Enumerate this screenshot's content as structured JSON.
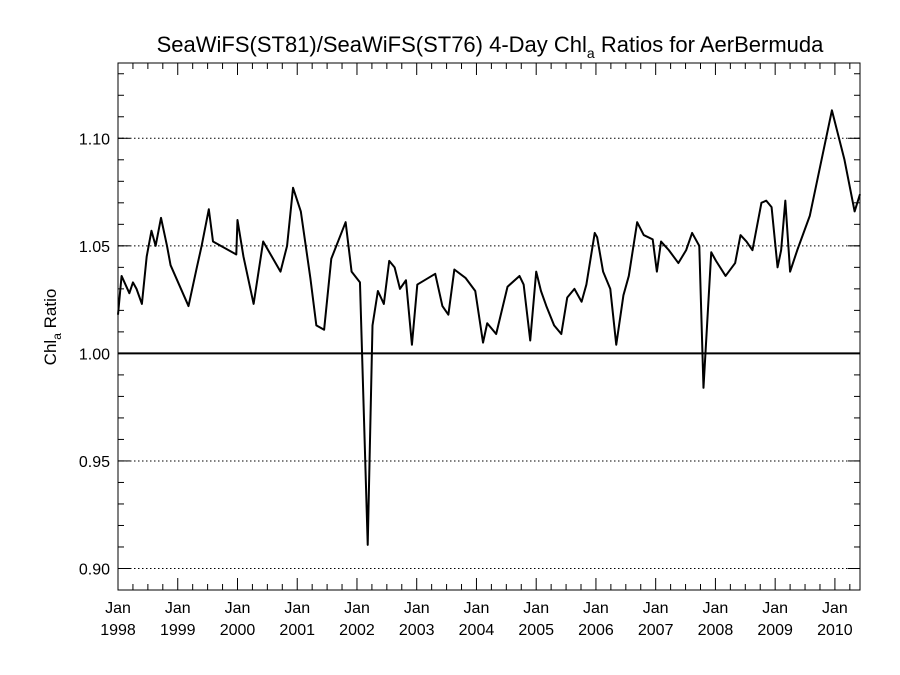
{
  "chart_data": {
    "type": "line",
    "title": {
      "prefix": "SeaWiFS(ST81)/SeaWiFS(ST76) 4-Day Chl",
      "subscript": "a",
      "suffix": " Ratios for AerBermuda"
    },
    "xlabel": "",
    "ylabel": {
      "prefix": "Chl",
      "subscript": "a",
      "suffix": " Ratio"
    },
    "x_unit": "year",
    "xlim": [
      1998.0,
      2010.42
    ],
    "ylim": [
      0.89,
      1.135
    ],
    "x_ticks": [
      {
        "value": 1998,
        "line1": "Jan",
        "line2": "1998"
      },
      {
        "value": 1999,
        "line1": "Jan",
        "line2": "1999"
      },
      {
        "value": 2000,
        "line1": "Jan",
        "line2": "2000"
      },
      {
        "value": 2001,
        "line1": "Jan",
        "line2": "2001"
      },
      {
        "value": 2002,
        "line1": "Jan",
        "line2": "2002"
      },
      {
        "value": 2003,
        "line1": "Jan",
        "line2": "2003"
      },
      {
        "value": 2004,
        "line1": "Jan",
        "line2": "2004"
      },
      {
        "value": 2005,
        "line1": "Jan",
        "line2": "2005"
      },
      {
        "value": 2006,
        "line1": "Jan",
        "line2": "2006"
      },
      {
        "value": 2007,
        "line1": "Jan",
        "line2": "2007"
      },
      {
        "value": 2008,
        "line1": "Jan",
        "line2": "2008"
      },
      {
        "value": 2009,
        "line1": "Jan",
        "line2": "2009"
      },
      {
        "value": 2010,
        "line1": "Jan",
        "line2": "2010"
      }
    ],
    "y_ticks": [
      {
        "value": 0.9,
        "label": "0.90"
      },
      {
        "value": 0.95,
        "label": "0.95"
      },
      {
        "value": 1.0,
        "label": "1.00"
      },
      {
        "value": 1.05,
        "label": "1.05"
      },
      {
        "value": 1.1,
        "label": "1.10"
      }
    ],
    "gridlines_dotted_y": [
      0.9,
      0.95,
      1.05,
      1.1
    ],
    "reference_line_y": 1.0,
    "grid": true,
    "line_color": "#000000",
    "series": [
      {
        "x": [
          1998.0,
          1998.06,
          1998.19,
          1998.25,
          1998.31,
          1998.4,
          1998.48,
          1998.56,
          1998.63,
          1998.72,
          1998.82,
          1998.88,
          1999.18,
          1999.32,
          1999.4,
          1999.52,
          1999.59,
          1999.98,
          2000.0,
          2000.1,
          2000.27,
          2000.43,
          2000.72,
          2000.83,
          2000.93,
          2001.06,
          2001.22,
          2001.32,
          2001.45,
          2001.57,
          2001.81,
          2001.91,
          2002.05,
          2002.18,
          2002.26,
          2002.35,
          2002.45,
          2002.54,
          2002.63,
          2002.72,
          2002.82,
          2002.92,
          2003.01,
          2003.31,
          2003.43,
          2003.53,
          2003.63,
          2003.82,
          2003.98,
          2004.11,
          2004.18,
          2004.33,
          2004.52,
          2004.72,
          2004.79,
          2004.9,
          2005.0,
          2005.08,
          2005.17,
          2005.3,
          2005.42,
          2005.52,
          2005.64,
          2005.76,
          2005.84,
          2005.98,
          2006.02,
          2006.12,
          2006.24,
          2006.34,
          2006.46,
          2006.55,
          2006.69,
          2006.8,
          2006.95,
          2007.02,
          2007.09,
          2007.22,
          2007.38,
          2007.51,
          2007.61,
          2007.73,
          2007.8,
          2007.93,
          2008.01,
          2008.17,
          2008.33,
          2008.42,
          2008.52,
          2008.62,
          2008.77,
          2008.85,
          2008.94,
          2009.04,
          2009.1,
          2009.17,
          2009.25,
          2009.37,
          2009.58,
          2009.95,
          2010.16,
          2010.33,
          2010.42
        ],
        "values": [
          1.018,
          1.036,
          1.028,
          1.033,
          1.03,
          1.023,
          1.045,
          1.057,
          1.05,
          1.063,
          1.05,
          1.041,
          1.022,
          1.04,
          1.05,
          1.067,
          1.052,
          1.046,
          1.062,
          1.045,
          1.023,
          1.052,
          1.038,
          1.05,
          1.077,
          1.066,
          1.035,
          1.013,
          1.011,
          1.044,
          1.061,
          1.038,
          1.033,
          0.911,
          1.013,
          1.029,
          1.023,
          1.043,
          1.04,
          1.03,
          1.034,
          1.004,
          1.032,
          1.037,
          1.022,
          1.018,
          1.039,
          1.035,
          1.029,
          1.005,
          1.014,
          1.009,
          1.031,
          1.036,
          1.032,
          1.006,
          1.038,
          1.029,
          1.022,
          1.013,
          1.009,
          1.026,
          1.03,
          1.024,
          1.032,
          1.056,
          1.054,
          1.038,
          1.03,
          1.004,
          1.027,
          1.036,
          1.061,
          1.055,
          1.053,
          1.038,
          1.052,
          1.048,
          1.042,
          1.048,
          1.056,
          1.05,
          0.984,
          1.047,
          1.043,
          1.036,
          1.042,
          1.055,
          1.052,
          1.048,
          1.07,
          1.071,
          1.068,
          1.04,
          1.048,
          1.071,
          1.038,
          1.048,
          1.064,
          1.113,
          1.09,
          1.066,
          1.074
        ]
      }
    ]
  }
}
